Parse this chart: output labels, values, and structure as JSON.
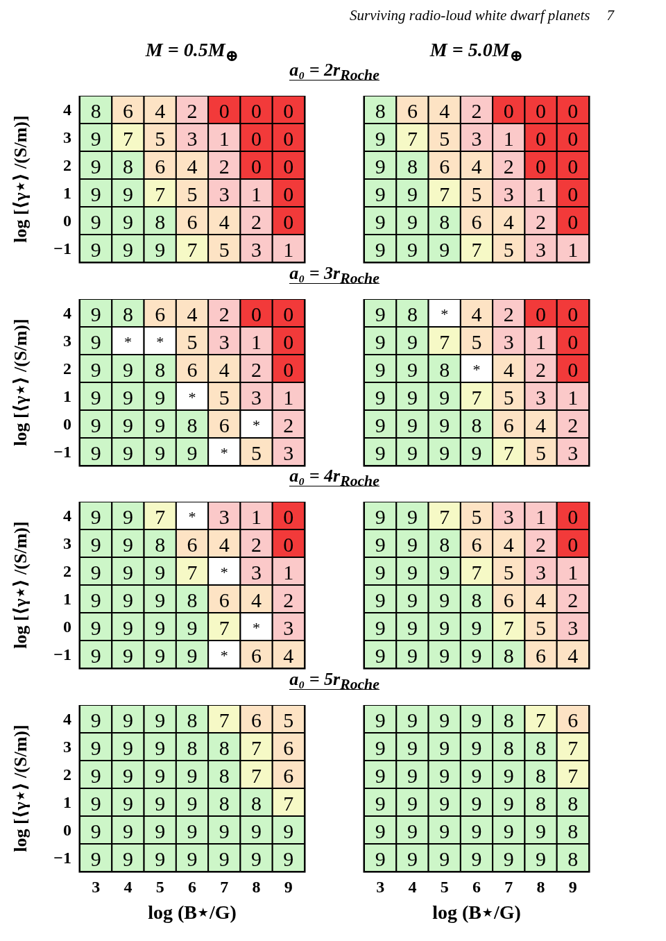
{
  "chart_data": [
    {
      "type": "heatmap",
      "title": "M = 0.5M$_{⊕}$",
      "subtitle": "a₀ = 2r$_{Roche}$",
      "ylabel": "log [⟨γ⋆⟩ /(S/m)]",
      "annotations": [
        "Surviving radio-loud white dwarf planets",
        "7"
      ],
      "tick_labels": "y",
      "data_labels": true,
      "categories": [
        "3",
        "4",
        "5",
        "6",
        "7",
        "8",
        "9"
      ],
      "y_categories": [
        "4",
        "3",
        "2",
        "1",
        "0",
        "−1"
      ],
      "cells": [
        [
          8,
          6,
          4,
          2,
          0,
          0,
          0
        ],
        [
          9,
          7,
          5,
          3,
          1,
          0,
          0
        ],
        [
          9,
          8,
          6,
          4,
          2,
          0,
          0
        ],
        [
          9,
          9,
          7,
          5,
          3,
          1,
          0
        ],
        [
          9,
          9,
          8,
          6,
          4,
          2,
          0
        ],
        [
          9,
          9,
          9,
          7,
          5,
          3,
          1
        ]
      ]
    },
    {
      "type": "heatmap",
      "title": "M = 5.0M$_{⊕}$",
      "tick_labels": false,
      "data_labels": true,
      "categories": [
        "3",
        "4",
        "5",
        "6",
        "7",
        "8",
        "9"
      ],
      "y_categories": [
        "4",
        "3",
        "2",
        "1",
        "0",
        "−1"
      ],
      "cells": [
        [
          8,
          6,
          4,
          2,
          0,
          0,
          0
        ],
        [
          9,
          7,
          5,
          3,
          1,
          0,
          0
        ],
        [
          9,
          8,
          6,
          4,
          2,
          0,
          0
        ],
        [
          9,
          9,
          7,
          5,
          3,
          1,
          0
        ],
        [
          9,
          9,
          8,
          6,
          4,
          2,
          0
        ],
        [
          9,
          9,
          9,
          7,
          5,
          3,
          1
        ]
      ]
    },
    {
      "type": "heatmap",
      "subtitle": "a₀ = 3r$_{Roche}$",
      "ylabel": "log [⟨γ⋆⟩ /(S/m)]",
      "tick_labels": "y",
      "data_labels": true,
      "categories": [
        "3",
        "4",
        "5",
        "6",
        "7",
        "8",
        "9"
      ],
      "y_categories": [
        "4",
        "3",
        "2",
        "1",
        "0",
        "−1"
      ],
      "cells": [
        [
          9,
          8,
          6,
          4,
          2,
          0,
          0
        ],
        [
          9,
          null,
          null,
          5,
          3,
          1,
          0
        ],
        [
          9,
          9,
          8,
          6,
          4,
          2,
          0
        ],
        [
          9,
          9,
          9,
          null,
          5,
          3,
          1
        ],
        [
          9,
          9,
          9,
          8,
          6,
          null,
          2
        ],
        [
          9,
          9,
          9,
          9,
          null,
          5,
          3
        ]
      ],
      "cell_labels": [
        [
          "9",
          "8",
          "6",
          "4",
          "2",
          "0",
          "0"
        ],
        [
          "9",
          "*",
          "*",
          "5",
          "3",
          "1",
          "0"
        ],
        [
          "9",
          "9",
          "8",
          "6",
          "4",
          "2",
          "0"
        ],
        [
          "9",
          "9",
          "9",
          "*",
          "5",
          "3",
          "1"
        ],
        [
          "9",
          "9",
          "9",
          "8",
          "6",
          "*",
          "2"
        ],
        [
          "9",
          "9",
          "9",
          "9",
          "*",
          "5",
          "3"
        ]
      ]
    },
    {
      "type": "heatmap",
      "tick_labels": false,
      "data_labels": true,
      "categories": [
        "3",
        "4",
        "5",
        "6",
        "7",
        "8",
        "9"
      ],
      "y_categories": [
        "4",
        "3",
        "2",
        "1",
        "0",
        "−1"
      ],
      "cells": [
        [
          9,
          8,
          null,
          4,
          2,
          0,
          0
        ],
        [
          9,
          9,
          7,
          5,
          3,
          1,
          0
        ],
        [
          9,
          9,
          8,
          null,
          4,
          2,
          0
        ],
        [
          9,
          9,
          9,
          7,
          5,
          3,
          1
        ],
        [
          9,
          9,
          9,
          8,
          6,
          4,
          2
        ],
        [
          9,
          9,
          9,
          9,
          7,
          5,
          3
        ]
      ],
      "cell_labels": [
        [
          "9",
          "8",
          "*",
          "4",
          "2",
          "0",
          "0"
        ],
        [
          "9",
          "9",
          "7",
          "5",
          "3",
          "1",
          "0"
        ],
        [
          "9",
          "9",
          "8",
          "*",
          "4",
          "2",
          "0"
        ],
        [
          "9",
          "9",
          "9",
          "7",
          "5",
          "3",
          "1"
        ],
        [
          "9",
          "9",
          "9",
          "8",
          "6",
          "4",
          "2"
        ],
        [
          "9",
          "9",
          "9",
          "9",
          "7",
          "5",
          "3"
        ]
      ]
    },
    {
      "type": "heatmap",
      "subtitle": "a₀ = 4r$_{Roche}$",
      "ylabel": "log [⟨γ⋆⟩ /(S/m)]",
      "tick_labels": "y",
      "data_labels": true,
      "categories": [
        "3",
        "4",
        "5",
        "6",
        "7",
        "8",
        "9"
      ],
      "y_categories": [
        "4",
        "3",
        "2",
        "1",
        "0",
        "−1"
      ],
      "cells": [
        [
          9,
          9,
          7,
          null,
          3,
          1,
          0
        ],
        [
          9,
          9,
          8,
          6,
          4,
          2,
          0
        ],
        [
          9,
          9,
          9,
          7,
          null,
          3,
          1
        ],
        [
          9,
          9,
          9,
          8,
          6,
          4,
          2
        ],
        [
          9,
          9,
          9,
          9,
          7,
          null,
          3
        ],
        [
          9,
          9,
          9,
          9,
          null,
          6,
          4
        ]
      ],
      "cell_labels": [
        [
          "9",
          "9",
          "7",
          "*",
          "3",
          "1",
          "0"
        ],
        [
          "9",
          "9",
          "8",
          "6",
          "4",
          "2",
          "0"
        ],
        [
          "9",
          "9",
          "9",
          "7",
          "*",
          "3",
          "1"
        ],
        [
          "9",
          "9",
          "9",
          "8",
          "6",
          "4",
          "2"
        ],
        [
          "9",
          "9",
          "9",
          "9",
          "7",
          "*",
          "3"
        ],
        [
          "9",
          "9",
          "9",
          "9",
          "*",
          "6",
          "4"
        ]
      ]
    },
    {
      "type": "heatmap",
      "tick_labels": false,
      "data_labels": true,
      "categories": [
        "3",
        "4",
        "5",
        "6",
        "7",
        "8",
        "9"
      ],
      "y_categories": [
        "4",
        "3",
        "2",
        "1",
        "0",
        "−1"
      ],
      "cells": [
        [
          9,
          9,
          7,
          5,
          3,
          1,
          0
        ],
        [
          9,
          9,
          8,
          6,
          4,
          2,
          0
        ],
        [
          9,
          9,
          9,
          7,
          5,
          3,
          1
        ],
        [
          9,
          9,
          9,
          8,
          6,
          4,
          2
        ],
        [
          9,
          9,
          9,
          9,
          7,
          5,
          3
        ],
        [
          9,
          9,
          9,
          9,
          8,
          6,
          4
        ]
      ]
    },
    {
      "type": "heatmap",
      "subtitle": "a₀ = 5r$_{Roche}$",
      "ylabel": "log [⟨γ⋆⟩ /(S/m)]",
      "xlabel": "log (B⋆/G)",
      "data_labels": true,
      "categories": [
        "3",
        "4",
        "5",
        "6",
        "7",
        "8",
        "9"
      ],
      "y_categories": [
        "4",
        "3",
        "2",
        "1",
        "0",
        "−1"
      ],
      "cells": [
        [
          9,
          9,
          9,
          8,
          7,
          6,
          5
        ],
        [
          9,
          9,
          9,
          8,
          8,
          7,
          6
        ],
        [
          9,
          9,
          9,
          9,
          8,
          7,
          6
        ],
        [
          9,
          9,
          9,
          9,
          8,
          8,
          7
        ],
        [
          9,
          9,
          9,
          9,
          9,
          9,
          9
        ],
        [
          9,
          9,
          9,
          9,
          9,
          9,
          9
        ]
      ]
    },
    {
      "type": "heatmap",
      "xlabel": "log (B⋆/G)",
      "tick_labels": "x",
      "data_labels": true,
      "categories": [
        "3",
        "4",
        "5",
        "6",
        "7",
        "8",
        "9"
      ],
      "y_categories": [
        "4",
        "3",
        "2",
        "1",
        "0",
        "−1"
      ],
      "cells": [
        [
          9,
          9,
          9,
          9,
          8,
          7,
          6
        ],
        [
          9,
          9,
          9,
          9,
          8,
          8,
          7
        ],
        [
          9,
          9,
          9,
          9,
          9,
          8,
          7
        ],
        [
          9,
          9,
          9,
          9,
          9,
          8,
          8
        ],
        [
          9,
          9,
          9,
          9,
          9,
          9,
          8
        ],
        [
          9,
          9,
          9,
          9,
          9,
          9,
          8
        ]
      ]
    }
  ]
}
